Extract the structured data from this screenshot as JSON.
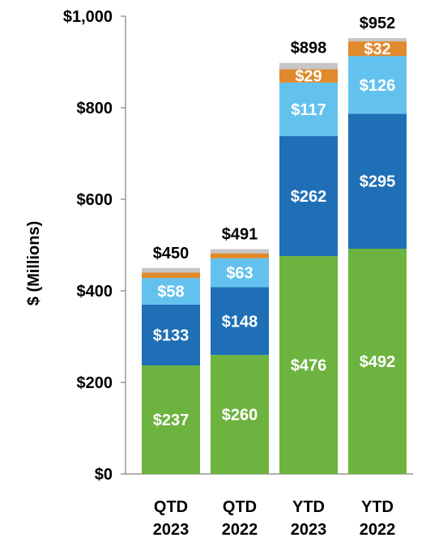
{
  "chart_data": {
    "type": "bar",
    "stacked": true,
    "ylabel": "$ (Millions)",
    "ylim": [
      0,
      1000
    ],
    "yticks": [
      0,
      200,
      400,
      600,
      800,
      1000
    ],
    "ytick_labels": [
      "$0",
      "$200",
      "$400",
      "$600",
      "$800",
      "$1,000"
    ],
    "categories": [
      [
        "QTD",
        "2023"
      ],
      [
        "QTD",
        "2022"
      ],
      [
        "YTD",
        "2023"
      ],
      [
        "YTD",
        "2022"
      ]
    ],
    "series": [
      {
        "values": [
          237,
          260,
          476,
          492
        ],
        "labels": [
          "$237",
          "$260",
          "$476",
          "$492"
        ],
        "color": "#6db33f",
        "label_color": "#ffffff"
      },
      {
        "values": [
          133,
          148,
          262,
          295
        ],
        "labels": [
          "$133",
          "$148",
          "$262",
          "$295"
        ],
        "color": "#1f6fb6",
        "label_color": "#ffffff"
      },
      {
        "values": [
          58,
          63,
          117,
          126
        ],
        "labels": [
          "$58",
          "$63",
          "$117",
          "$126"
        ],
        "color": "#63c2ed",
        "label_color": "#ffffff"
      },
      {
        "values": [
          12,
          11,
          29,
          32
        ],
        "labels": [
          "",
          "",
          "$29",
          "$32"
        ],
        "color": "#e08a2c",
        "label_color": "#ffffff"
      },
      {
        "values": [
          10,
          9,
          14,
          7
        ],
        "labels": [
          "",
          "",
          "",
          ""
        ],
        "color": "#c6c6c6",
        "label_color": "#ffffff"
      }
    ],
    "totals": [
      450,
      491,
      898,
      952
    ],
    "total_labels": [
      "$450",
      "$491",
      "$898",
      "$952"
    ],
    "grid": false
  }
}
